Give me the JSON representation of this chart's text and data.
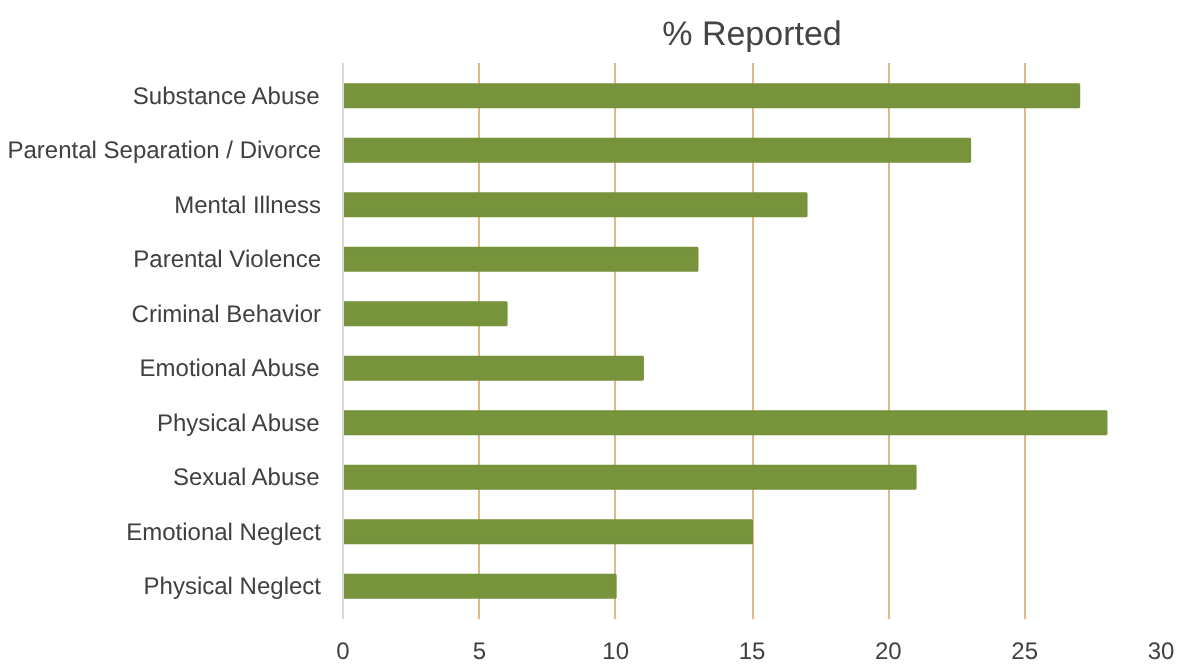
{
  "chart_data": {
    "type": "bar",
    "orientation": "horizontal",
    "title": "% Reported",
    "categories": [
      "Substance Abuse",
      "Parental Separation / Divorce",
      "Mental Illness",
      "Parental Violence",
      "Criminal Behavior",
      "Emotional Abuse",
      "Physical Abuse",
      "Sexual Abuse",
      "Emotional Neglect",
      "Physical Neglect"
    ],
    "values": [
      27,
      23,
      17,
      13,
      6,
      11,
      28,
      21,
      15,
      10
    ],
    "color": "#77933c",
    "xlim": [
      0,
      30
    ],
    "xticks": [
      0,
      5,
      10,
      15,
      20,
      25,
      30
    ],
    "grid": "x"
  }
}
